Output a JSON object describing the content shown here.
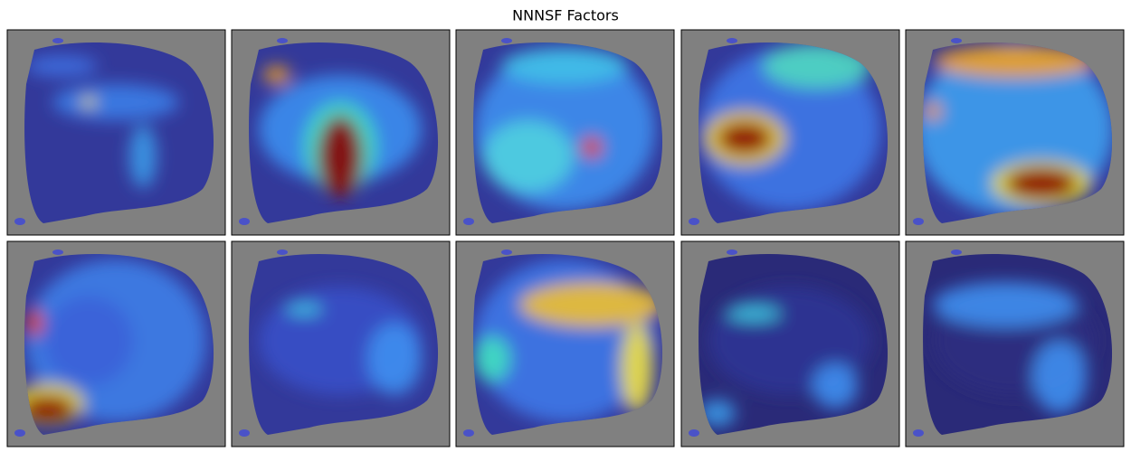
{
  "title": "NNNSF Factors"
}
